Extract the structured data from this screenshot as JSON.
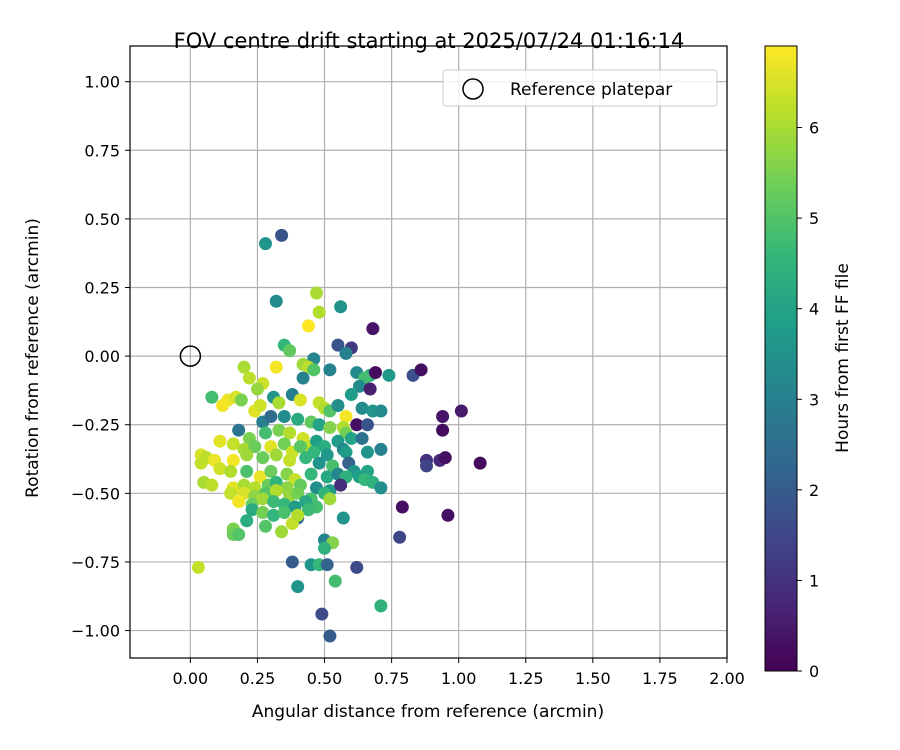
{
  "chart_data": {
    "type": "scatter",
    "title": "FOV centre drift starting at 2025/07/24 01:16:14",
    "xlabel": "Angular distance from reference (arcmin)",
    "ylabel": "Rotation from reference (arcmin)",
    "xlim": [
      -0.225,
      2.0
    ],
    "ylim": [
      -1.1,
      1.13
    ],
    "xticks": [
      0.0,
      0.25,
      0.5,
      0.75,
      1.0,
      1.25,
      1.5,
      1.75,
      2.0
    ],
    "xtick_labels": [
      "0.00",
      "0.25",
      "0.50",
      "0.75",
      "1.00",
      "1.25",
      "1.50",
      "1.75",
      "2.00"
    ],
    "yticks": [
      -1.0,
      -0.75,
      -0.5,
      -0.25,
      0.0,
      0.25,
      0.5,
      0.75,
      1.0
    ],
    "ytick_labels": [
      "−1.00",
      "−0.75",
      "−0.50",
      "−0.25",
      "0.00",
      "0.25",
      "0.50",
      "0.75",
      "1.00"
    ],
    "grid": true,
    "legend": {
      "position": "top-right",
      "entries": [
        {
          "label": "Reference platepar",
          "marker": "open-circle"
        }
      ]
    },
    "reference_point": {
      "x": 0.0,
      "y": 0.0
    },
    "colorbar": {
      "label": "Hours from first FF file",
      "range": [
        0,
        6.9
      ],
      "ticks": [
        0,
        1,
        2,
        3,
        4,
        5,
        6
      ],
      "tick_labels": [
        "0",
        "1",
        "2",
        "3",
        "4",
        "5",
        "6"
      ],
      "colormap": "viridis",
      "stops": [
        "#440154",
        "#482878",
        "#3e4989",
        "#31688e",
        "#26828e",
        "#1f9e89",
        "#35b779",
        "#6ece58",
        "#b5de2b",
        "#fde725"
      ]
    },
    "points": [
      [
        0.28,
        0.41,
        3.6
      ],
      [
        0.34,
        0.44,
        1.8
      ],
      [
        0.32,
        0.2,
        3.3
      ],
      [
        0.56,
        0.18,
        3.5
      ],
      [
        0.47,
        0.23,
        6.0
      ],
      [
        0.48,
        0.16,
        6.1
      ],
      [
        0.44,
        0.11,
        6.9
      ],
      [
        0.68,
        0.1,
        0.4
      ],
      [
        0.35,
        0.04,
        4.6
      ],
      [
        0.37,
        0.02,
        5.2
      ],
      [
        0.55,
        0.04,
        1.8
      ],
      [
        0.6,
        0.03,
        1.2
      ],
      [
        0.58,
        0.01,
        3.0
      ],
      [
        0.46,
        -0.01,
        3.2
      ],
      [
        0.42,
        -0.03,
        5.9
      ],
      [
        0.44,
        -0.04,
        6.2
      ],
      [
        0.46,
        -0.05,
        5.0
      ],
      [
        0.52,
        -0.05,
        3.1
      ],
      [
        0.62,
        -0.06,
        3.3
      ],
      [
        0.67,
        -0.07,
        4.2
      ],
      [
        0.65,
        -0.08,
        4.8
      ],
      [
        0.69,
        -0.06,
        0.2
      ],
      [
        0.74,
        -0.07,
        3.7
      ],
      [
        0.83,
        -0.07,
        1.7
      ],
      [
        0.86,
        -0.05,
        0.3
      ],
      [
        0.42,
        -0.08,
        3.0
      ],
      [
        0.32,
        -0.04,
        6.8
      ],
      [
        0.2,
        -0.04,
        6.0
      ],
      [
        0.22,
        -0.08,
        6.2
      ],
      [
        0.27,
        -0.1,
        6.4
      ],
      [
        0.25,
        -0.12,
        5.8
      ],
      [
        0.63,
        -0.11,
        3.3
      ],
      [
        0.67,
        -0.12,
        0.6
      ],
      [
        0.6,
        -0.14,
        3.8
      ],
      [
        0.38,
        -0.14,
        3.0
      ],
      [
        0.31,
        -0.15,
        3.6
      ],
      [
        0.08,
        -0.15,
        4.8
      ],
      [
        0.14,
        -0.16,
        6.7
      ],
      [
        0.17,
        -0.15,
        6.5
      ],
      [
        0.12,
        -0.18,
        6.8
      ],
      [
        0.19,
        -0.16,
        5.5
      ],
      [
        0.24,
        -0.2,
        6.6
      ],
      [
        0.26,
        -0.18,
        6.4
      ],
      [
        0.33,
        -0.17,
        6.0
      ],
      [
        0.41,
        -0.16,
        6.5
      ],
      [
        0.48,
        -0.17,
        6.3
      ],
      [
        0.5,
        -0.19,
        6.1
      ],
      [
        0.52,
        -0.2,
        5.0
      ],
      [
        0.55,
        -0.18,
        3.4
      ],
      [
        0.64,
        -0.19,
        3.3
      ],
      [
        0.68,
        -0.2,
        3.6
      ],
      [
        0.71,
        -0.2,
        3.3
      ],
      [
        0.58,
        -0.22,
        6.8
      ],
      [
        0.62,
        -0.25,
        0.3
      ],
      [
        0.66,
        -0.25,
        1.8
      ],
      [
        0.94,
        -0.22,
        0.4
      ],
      [
        1.01,
        -0.2,
        0.5
      ],
      [
        0.94,
        -0.27,
        0.2
      ],
      [
        0.27,
        -0.24,
        3.0
      ],
      [
        0.3,
        -0.22,
        2.4
      ],
      [
        0.35,
        -0.22,
        3.4
      ],
      [
        0.4,
        -0.23,
        4.2
      ],
      [
        0.45,
        -0.24,
        5.2
      ],
      [
        0.48,
        -0.25,
        4.0
      ],
      [
        0.52,
        -0.26,
        5.6
      ],
      [
        0.57,
        -0.26,
        6.1
      ],
      [
        0.58,
        -0.28,
        5.4
      ],
      [
        0.18,
        -0.27,
        2.7
      ],
      [
        0.22,
        -0.3,
        5.5
      ],
      [
        0.28,
        -0.28,
        4.8
      ],
      [
        0.33,
        -0.27,
        5.5
      ],
      [
        0.37,
        -0.28,
        6.1
      ],
      [
        0.42,
        -0.3,
        6.4
      ],
      [
        0.44,
        -0.33,
        6.2
      ],
      [
        0.47,
        -0.31,
        3.9
      ],
      [
        0.5,
        -0.33,
        4.3
      ],
      [
        0.55,
        -0.31,
        3.8
      ],
      [
        0.6,
        -0.3,
        4.0
      ],
      [
        0.64,
        -0.3,
        2.6
      ],
      [
        0.11,
        -0.31,
        6.6
      ],
      [
        0.16,
        -0.32,
        6.3
      ],
      [
        0.2,
        -0.34,
        6.0
      ],
      [
        0.24,
        -0.33,
        5.3
      ],
      [
        0.3,
        -0.33,
        6.6
      ],
      [
        0.35,
        -0.32,
        5.4
      ],
      [
        0.38,
        -0.35,
        6.4
      ],
      [
        0.41,
        -0.33,
        5.1
      ],
      [
        0.46,
        -0.35,
        4.6
      ],
      [
        0.51,
        -0.36,
        3.7
      ],
      [
        0.57,
        -0.34,
        3.2
      ],
      [
        0.58,
        -0.35,
        3.8
      ],
      [
        0.66,
        -0.35,
        3.6
      ],
      [
        0.71,
        -0.34,
        3.0
      ],
      [
        0.04,
        -0.36,
        6.5
      ],
      [
        0.04,
        -0.39,
        6.3
      ],
      [
        0.06,
        -0.37,
        6.2
      ],
      [
        0.09,
        -0.38,
        6.7
      ],
      [
        0.16,
        -0.38,
        6.8
      ],
      [
        0.21,
        -0.36,
        5.9
      ],
      [
        0.27,
        -0.37,
        5.3
      ],
      [
        0.32,
        -0.36,
        5.9
      ],
      [
        0.37,
        -0.38,
        6.3
      ],
      [
        0.43,
        -0.37,
        4.6
      ],
      [
        0.48,
        -0.39,
        3.6
      ],
      [
        0.53,
        -0.4,
        4.9
      ],
      [
        0.59,
        -0.39,
        2.2
      ],
      [
        0.61,
        -0.42,
        3.6
      ],
      [
        0.63,
        -0.44,
        3.9
      ],
      [
        0.66,
        -0.42,
        4.0
      ],
      [
        0.88,
        -0.38,
        1.0
      ],
      [
        0.88,
        -0.4,
        1.4
      ],
      [
        0.93,
        -0.38,
        0.8
      ],
      [
        0.95,
        -0.37,
        0.3
      ],
      [
        1.08,
        -0.39,
        0.2
      ],
      [
        0.11,
        -0.41,
        6.4
      ],
      [
        0.15,
        -0.42,
        6.1
      ],
      [
        0.21,
        -0.42,
        4.9
      ],
      [
        0.26,
        -0.44,
        6.7
      ],
      [
        0.3,
        -0.42,
        5.3
      ],
      [
        0.36,
        -0.43,
        5.6
      ],
      [
        0.39,
        -0.45,
        6.3
      ],
      [
        0.45,
        -0.43,
        4.6
      ],
      [
        0.51,
        -0.44,
        4.1
      ],
      [
        0.55,
        -0.43,
        3.2
      ],
      [
        0.58,
        -0.44,
        4.4
      ],
      [
        0.65,
        -0.45,
        4.6
      ],
      [
        0.68,
        -0.46,
        4.4
      ],
      [
        0.71,
        -0.48,
        3.4
      ],
      [
        0.05,
        -0.46,
        6.0
      ],
      [
        0.08,
        -0.47,
        6.2
      ],
      [
        0.16,
        -0.48,
        6.6
      ],
      [
        0.2,
        -0.47,
        6.0
      ],
      [
        0.24,
        -0.48,
        6.1
      ],
      [
        0.29,
        -0.47,
        5.3
      ],
      [
        0.32,
        -0.46,
        4.5
      ],
      [
        0.36,
        -0.48,
        5.7
      ],
      [
        0.41,
        -0.47,
        5.2
      ],
      [
        0.47,
        -0.48,
        3.4
      ],
      [
        0.52,
        -0.49,
        3.7
      ],
      [
        0.56,
        -0.47,
        0.9
      ],
      [
        0.15,
        -0.5,
        6.3
      ],
      [
        0.2,
        -0.5,
        6.5
      ],
      [
        0.24,
        -0.51,
        5.7
      ],
      [
        0.28,
        -0.5,
        5.0
      ],
      [
        0.32,
        -0.49,
        6.1
      ],
      [
        0.37,
        -0.51,
        5.8
      ],
      [
        0.4,
        -0.5,
        5.4
      ],
      [
        0.45,
        -0.52,
        4.9
      ],
      [
        0.5,
        -0.5,
        4.5
      ],
      [
        0.18,
        -0.53,
        6.8
      ],
      [
        0.23,
        -0.54,
        5.3
      ],
      [
        0.27,
        -0.52,
        5.9
      ],
      [
        0.31,
        -0.53,
        4.7
      ],
      [
        0.35,
        -0.54,
        4.6
      ],
      [
        0.39,
        -0.55,
        3.8
      ],
      [
        0.43,
        -0.53,
        4.1
      ],
      [
        0.47,
        -0.55,
        4.8
      ],
      [
        0.52,
        -0.52,
        5.9
      ],
      [
        0.79,
        -0.55,
        0.3
      ],
      [
        0.96,
        -0.58,
        0.3
      ],
      [
        0.23,
        -0.56,
        4.2
      ],
      [
        0.27,
        -0.57,
        5.4
      ],
      [
        0.31,
        -0.58,
        4.5
      ],
      [
        0.35,
        -0.57,
        4.9
      ],
      [
        0.4,
        -0.59,
        2.4
      ],
      [
        0.44,
        -0.56,
        4.7
      ],
      [
        0.57,
        -0.59,
        3.6
      ],
      [
        0.16,
        -0.63,
        5.5
      ],
      [
        0.16,
        -0.65,
        5.3
      ],
      [
        0.18,
        -0.65,
        5.0
      ],
      [
        0.21,
        -0.6,
        4.3
      ],
      [
        0.28,
        -0.62,
        5.0
      ],
      [
        0.34,
        -0.64,
        5.9
      ],
      [
        0.38,
        -0.61,
        6.3
      ],
      [
        0.4,
        -0.58,
        6.1
      ],
      [
        0.5,
        -0.67,
        3.1
      ],
      [
        0.53,
        -0.68,
        5.6
      ],
      [
        0.5,
        -0.7,
        4.4
      ],
      [
        0.78,
        -0.66,
        1.5
      ],
      [
        0.03,
        -0.77,
        6.3
      ],
      [
        0.38,
        -0.75,
        2.0
      ],
      [
        0.45,
        -0.76,
        3.6
      ],
      [
        0.48,
        -0.76,
        4.6
      ],
      [
        0.51,
        -0.76,
        2.2
      ],
      [
        0.62,
        -0.77,
        1.6
      ],
      [
        0.54,
        -0.82,
        4.8
      ],
      [
        0.4,
        -0.84,
        3.6
      ],
      [
        0.71,
        -0.91,
        4.4
      ],
      [
        0.49,
        -0.94,
        1.6
      ],
      [
        0.52,
        -1.02,
        2.0
      ]
    ]
  }
}
